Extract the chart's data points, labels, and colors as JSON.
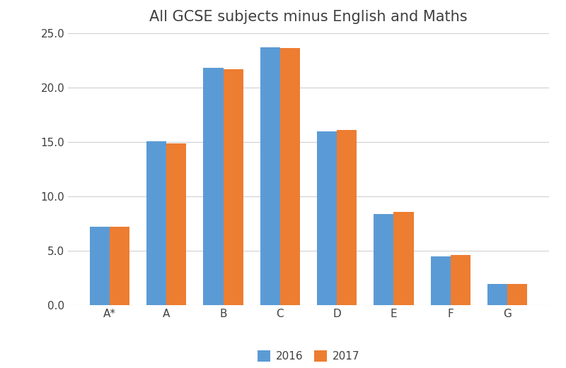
{
  "title": "All GCSE subjects minus English and Maths",
  "categories": [
    "A*",
    "A",
    "B",
    "C",
    "D",
    "E",
    "F",
    "G"
  ],
  "values_2016": [
    7.2,
    15.1,
    21.8,
    23.7,
    16.0,
    8.4,
    4.5,
    2.0
  ],
  "values_2017": [
    7.2,
    14.9,
    21.7,
    23.6,
    16.1,
    8.6,
    4.6,
    2.0
  ],
  "color_2016": "#5B9BD5",
  "color_2017": "#ED7D31",
  "legend_2016": "2016",
  "legend_2017": "2017",
  "ylim": [
    0,
    25.0
  ],
  "yticks": [
    0.0,
    5.0,
    10.0,
    15.0,
    20.0,
    25.0
  ],
  "bar_width": 0.35,
  "background_color": "#ffffff",
  "title_fontsize": 15,
  "tick_fontsize": 11,
  "legend_fontsize": 11
}
